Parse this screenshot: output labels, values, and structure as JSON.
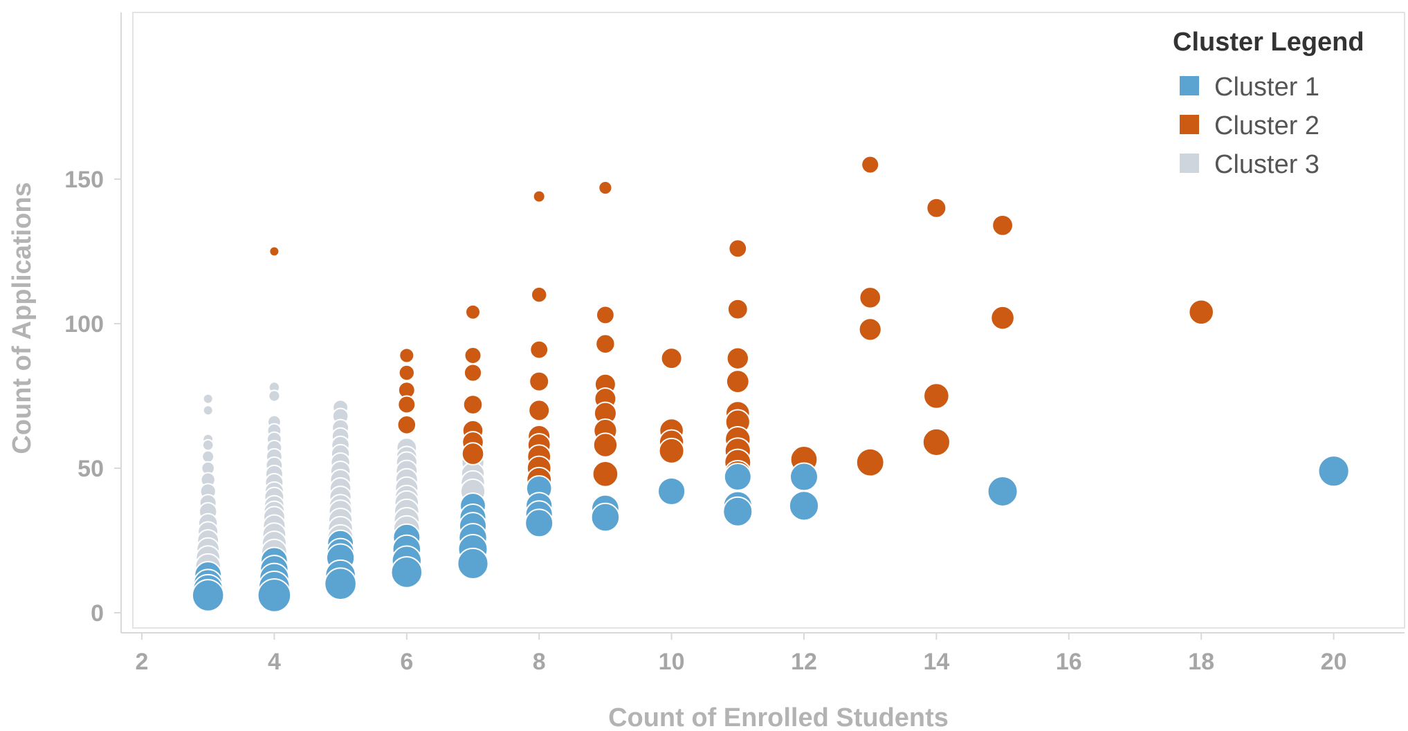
{
  "chart_data": {
    "type": "scatter",
    "xlabel": "Count of Enrolled Students",
    "ylabel": "Count of Applications",
    "xlim": [
      1.8,
      21.2
    ],
    "ylim": [
      -5,
      162
    ],
    "x_ticks": [
      2,
      4,
      6,
      8,
      10,
      12,
      14,
      16,
      18,
      20
    ],
    "y_ticks": [
      0,
      50,
      100,
      150
    ],
    "grid": false,
    "legend": {
      "title": "Cluster Legend",
      "placement": "top-right",
      "items": [
        {
          "label": "Cluster 1",
          "color": "#5ba3d0"
        },
        {
          "label": "Cluster 2",
          "color": "#cc5a13"
        },
        {
          "label": "Cluster 3",
          "color": "#cfd5dc"
        }
      ]
    },
    "series": [
      {
        "name": "Cluster 3",
        "color": "#cfd5dc",
        "points": [
          [
            3,
            74
          ],
          [
            3,
            70
          ],
          [
            3,
            60
          ],
          [
            3,
            58
          ],
          [
            3,
            54
          ],
          [
            3,
            50
          ],
          [
            3,
            46
          ],
          [
            3,
            42
          ],
          [
            3,
            38
          ],
          [
            3,
            35
          ],
          [
            3,
            31
          ],
          [
            3,
            28
          ],
          [
            3,
            25
          ],
          [
            3,
            22
          ],
          [
            3,
            19
          ],
          [
            3,
            16
          ],
          [
            4,
            78
          ],
          [
            4,
            75
          ],
          [
            4,
            66
          ],
          [
            4,
            63
          ],
          [
            4,
            60
          ],
          [
            4,
            57
          ],
          [
            4,
            54
          ],
          [
            4,
            51
          ],
          [
            4,
            48
          ],
          [
            4,
            45
          ],
          [
            4,
            42
          ],
          [
            4,
            40
          ],
          [
            4,
            37
          ],
          [
            4,
            35
          ],
          [
            4,
            33
          ],
          [
            4,
            30
          ],
          [
            4,
            27
          ],
          [
            4,
            24
          ],
          [
            4,
            21
          ],
          [
            5,
            71
          ],
          [
            5,
            68
          ],
          [
            5,
            64
          ],
          [
            5,
            61
          ],
          [
            5,
            58
          ],
          [
            5,
            55
          ],
          [
            5,
            52
          ],
          [
            5,
            49
          ],
          [
            5,
            46
          ],
          [
            5,
            43
          ],
          [
            5,
            40
          ],
          [
            5,
            37
          ],
          [
            5,
            35
          ],
          [
            5,
            32
          ],
          [
            5,
            29
          ],
          [
            5,
            26
          ],
          [
            6,
            57
          ],
          [
            6,
            54
          ],
          [
            6,
            52
          ],
          [
            6,
            49
          ],
          [
            6,
            46
          ],
          [
            6,
            43
          ],
          [
            6,
            40
          ],
          [
            6,
            38
          ],
          [
            6,
            35
          ],
          [
            6,
            32
          ],
          [
            6,
            29
          ],
          [
            7,
            52
          ],
          [
            7,
            48
          ],
          [
            7,
            45
          ],
          [
            7,
            42
          ]
        ]
      },
      {
        "name": "Cluster 2",
        "color": "#cc5a13",
        "points": [
          [
            4,
            125
          ],
          [
            6,
            89
          ],
          [
            6,
            83
          ],
          [
            6,
            77
          ],
          [
            6,
            72
          ],
          [
            6,
            65
          ],
          [
            7,
            104
          ],
          [
            7,
            89
          ],
          [
            7,
            83
          ],
          [
            7,
            72
          ],
          [
            7,
            63
          ],
          [
            7,
            59
          ],
          [
            7,
            55
          ],
          [
            8,
            144
          ],
          [
            8,
            110
          ],
          [
            8,
            91
          ],
          [
            8,
            80
          ],
          [
            8,
            70
          ],
          [
            8,
            61
          ],
          [
            8,
            58
          ],
          [
            8,
            54
          ],
          [
            8,
            50
          ],
          [
            8,
            46
          ],
          [
            9,
            147
          ],
          [
            9,
            103
          ],
          [
            9,
            93
          ],
          [
            9,
            79
          ],
          [
            9,
            74
          ],
          [
            9,
            69
          ],
          [
            9,
            63
          ],
          [
            9,
            58
          ],
          [
            9,
            48
          ],
          [
            10,
            88
          ],
          [
            10,
            63
          ],
          [
            10,
            59
          ],
          [
            10,
            56
          ],
          [
            11,
            126
          ],
          [
            11,
            105
          ],
          [
            11,
            88
          ],
          [
            11,
            80
          ],
          [
            11,
            69
          ],
          [
            11,
            66
          ],
          [
            11,
            60
          ],
          [
            11,
            56
          ],
          [
            11,
            52
          ],
          [
            11,
            48
          ],
          [
            12,
            53
          ],
          [
            13,
            155
          ],
          [
            13,
            109
          ],
          [
            13,
            98
          ],
          [
            13,
            52
          ],
          [
            14,
            140
          ],
          [
            14,
            75
          ],
          [
            14,
            59
          ],
          [
            15,
            134
          ],
          [
            15,
            102
          ],
          [
            18,
            104
          ]
        ]
      },
      {
        "name": "Cluster 1",
        "color": "#5ba3d0",
        "points": [
          [
            3,
            13
          ],
          [
            3,
            10
          ],
          [
            3,
            8
          ],
          [
            3,
            6
          ],
          [
            4,
            18
          ],
          [
            4,
            15
          ],
          [
            4,
            12
          ],
          [
            4,
            9
          ],
          [
            4,
            6
          ],
          [
            5,
            24
          ],
          [
            5,
            21
          ],
          [
            5,
            19
          ],
          [
            5,
            13
          ],
          [
            5,
            10
          ],
          [
            6,
            26
          ],
          [
            6,
            22
          ],
          [
            6,
            18
          ],
          [
            6,
            14
          ],
          [
            7,
            37
          ],
          [
            7,
            33
          ],
          [
            7,
            30
          ],
          [
            7,
            26
          ],
          [
            7,
            22
          ],
          [
            7,
            17
          ],
          [
            8,
            43
          ],
          [
            8,
            37
          ],
          [
            8,
            34
          ],
          [
            8,
            31
          ],
          [
            9,
            36
          ],
          [
            9,
            33
          ],
          [
            10,
            42
          ],
          [
            11,
            47
          ],
          [
            11,
            37
          ],
          [
            11,
            35
          ],
          [
            12,
            47
          ],
          [
            12,
            37
          ],
          [
            15,
            42
          ],
          [
            20,
            49
          ]
        ]
      }
    ]
  }
}
